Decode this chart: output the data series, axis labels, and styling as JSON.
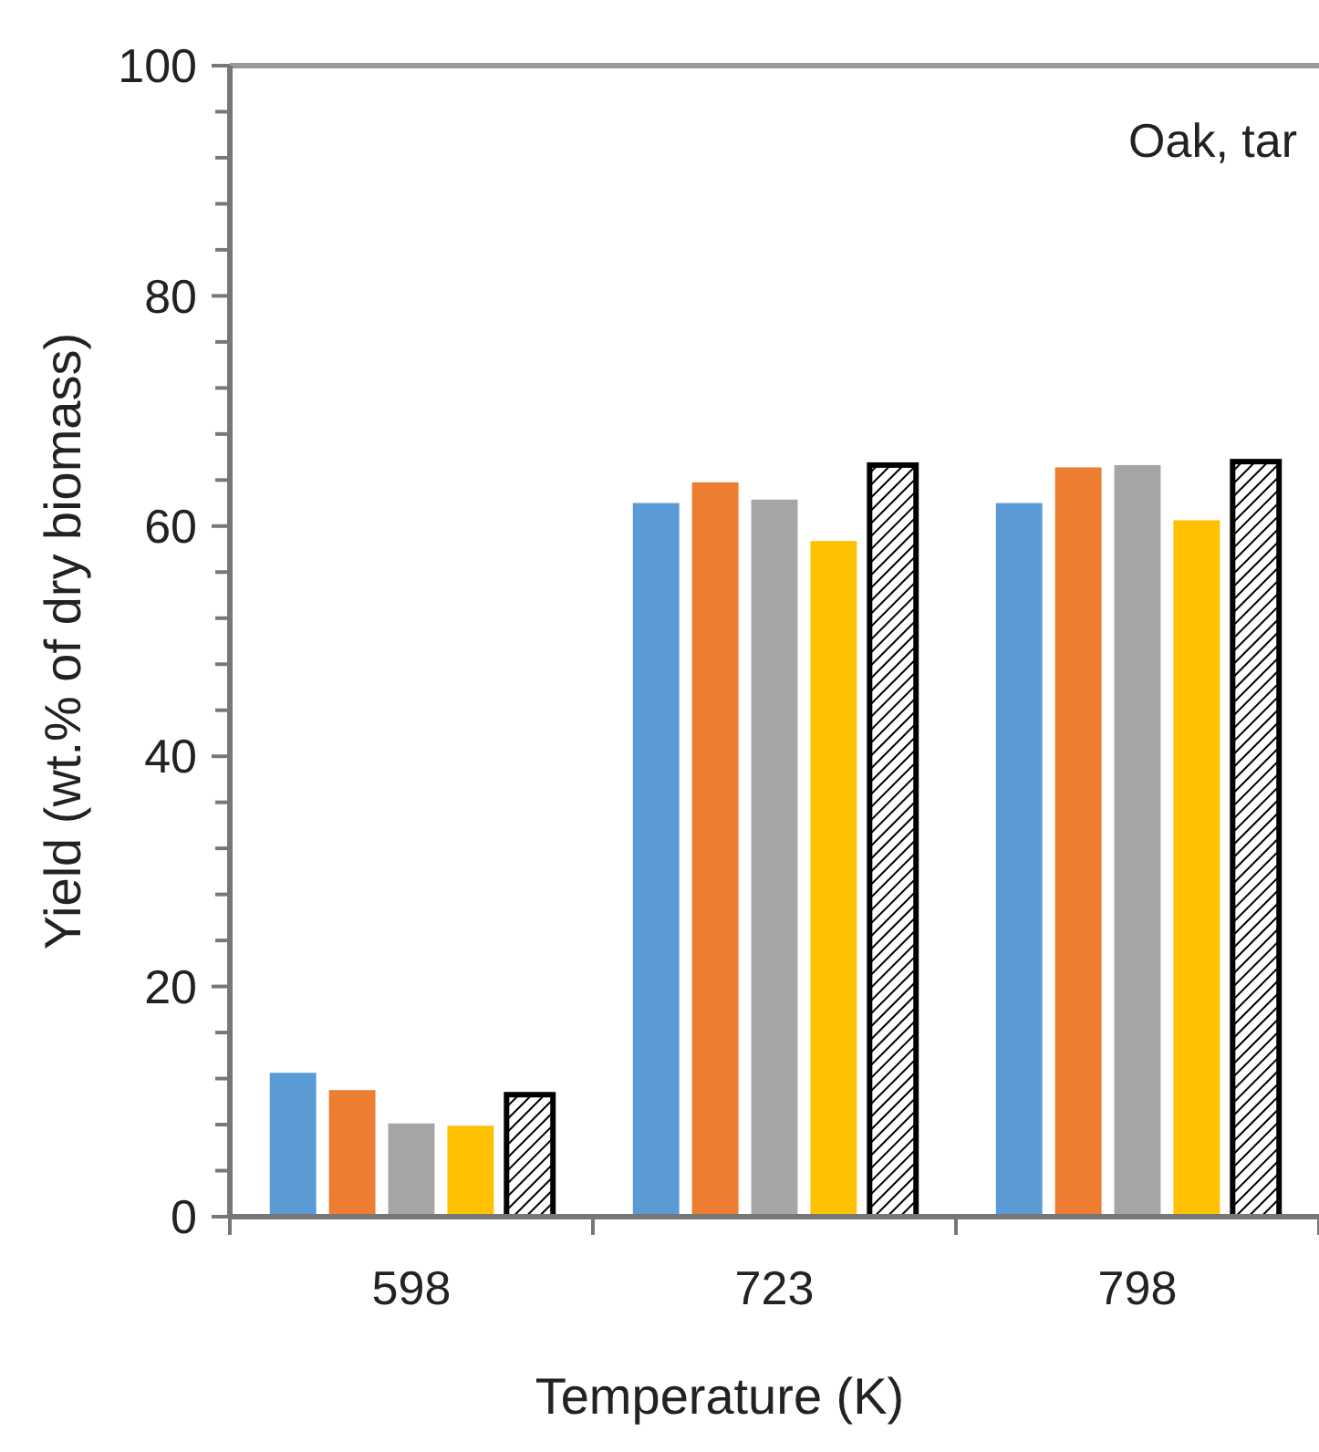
{
  "chart_data": {
    "type": "bar",
    "annotations": [
      "Oak, tar"
    ],
    "xlabel": "Temperature (K)",
    "ylabel": "Yield (wt.% of dry biomass)",
    "categories": [
      "598",
      "723",
      "798"
    ],
    "series": [
      {
        "color": "#5b9bd5",
        "values": [
          12.5,
          62.0,
          62.0
        ]
      },
      {
        "color": "#ed7d31",
        "values": [
          11.0,
          63.8,
          65.1
        ]
      },
      {
        "color": "#a5a5a5",
        "values": [
          8.1,
          62.3,
          65.3
        ]
      },
      {
        "color": "#ffc000",
        "values": [
          7.9,
          58.7,
          60.5
        ]
      },
      {
        "color": "#000000",
        "values": [
          10.6,
          65.3,
          65.6
        ]
      }
    ],
    "ylim": [
      0,
      100
    ],
    "yticks": [
      0,
      {
        "value": 4,
        "label": null
      },
      {
        "value": 8,
        "label": null
      },
      {
        "value": 12,
        "label": null
      },
      {
        "value": 16,
        "label": null
      },
      20,
      {
        "value": 24,
        "label": null
      },
      {
        "value": 28,
        "label": null
      },
      {
        "value": 32,
        "label": null
      },
      {
        "value": 36,
        "label": null
      },
      40,
      {
        "value": 44,
        "label": null
      },
      {
        "value": 48,
        "label": null
      },
      {
        "value": 52,
        "label": null
      },
      {
        "value": 56,
        "label": null
      },
      60,
      {
        "value": 64,
        "label": null
      },
      {
        "value": 68,
        "label": null
      },
      {
        "value": 72,
        "label": null
      },
      {
        "value": 76,
        "label": null
      },
      80,
      {
        "value": 84,
        "label": null
      },
      {
        "value": 88,
        "label": null
      },
      {
        "value": 92,
        "label": null
      },
      {
        "value": 96,
        "label": null
      },
      100
    ]
  }
}
